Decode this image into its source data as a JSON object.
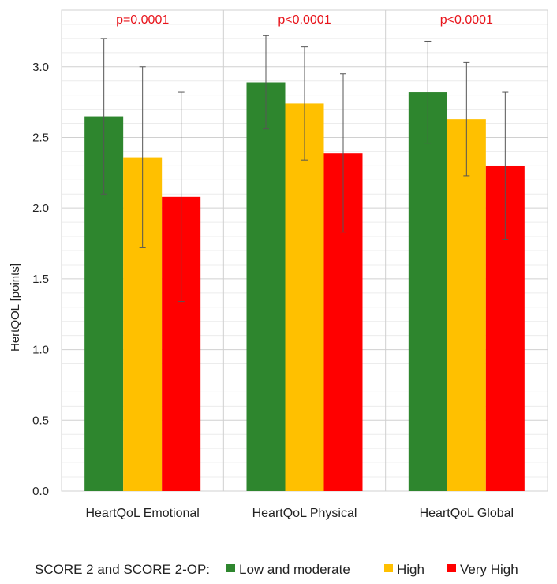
{
  "chart_data": {
    "type": "bar",
    "title": "",
    "xlabel": "",
    "ylabel": "HertQOL [points]",
    "ylim": [
      0,
      3.4
    ],
    "yticks": [
      "0.0",
      "0.5",
      "1.0",
      "1.5",
      "2.0",
      "2.5",
      "3.0"
    ],
    "yticks_values": [
      0,
      0.5,
      1.0,
      1.5,
      2.0,
      2.5,
      3.0
    ],
    "categories": [
      "HeartQoL Emotional",
      "HeartQoL Physical",
      "HeartQoL Global"
    ],
    "p_values": [
      "p=0.0001",
      "p<0.0001",
      "p<0.0001"
    ],
    "series": [
      {
        "name": "Low and moderate",
        "color": "#2e862e",
        "values": [
          2.65,
          2.89,
          2.82
        ],
        "error": [
          0.55,
          0.33,
          0.36
        ]
      },
      {
        "name": "High",
        "color": "#ffc000",
        "values": [
          2.36,
          2.74,
          2.63
        ],
        "error": [
          0.64,
          0.4,
          0.4
        ]
      },
      {
        "name": "Very High",
        "color": "#ff0000",
        "values": [
          2.08,
          2.39,
          2.3
        ],
        "error": [
          0.74,
          0.56,
          0.52
        ]
      }
    ],
    "legend": {
      "title": "SCORE 2 and SCORE 2-OP:",
      "position": "bottom"
    },
    "grid": true
  }
}
